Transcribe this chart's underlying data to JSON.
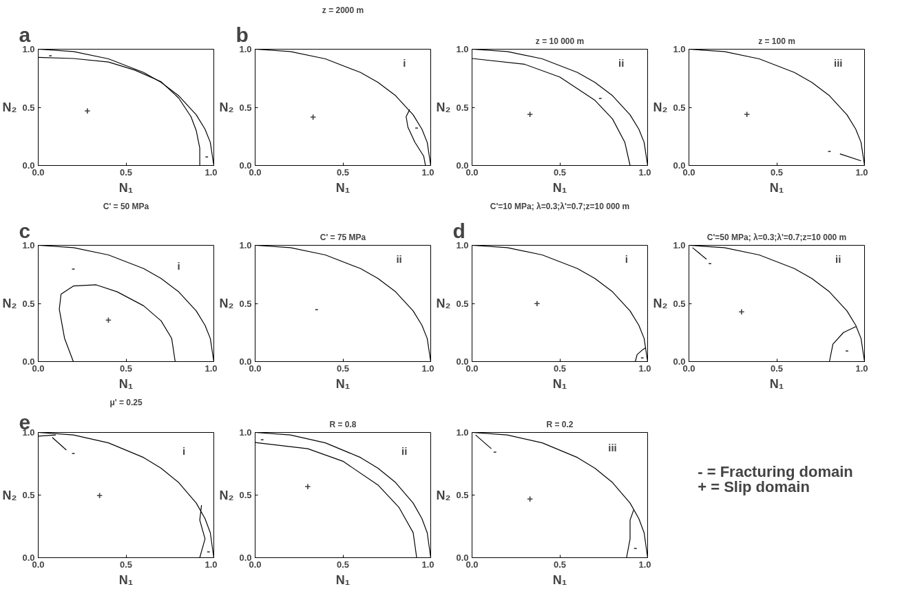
{
  "chart_data": [
    {
      "type": "line",
      "xlabel": "N₁",
      "ylabel": "N₂",
      "xlim": [
        0,
        1
      ],
      "ylim": [
        0,
        1
      ],
      "xticks": [
        {
          "value": 0,
          "label": "0.0"
        },
        {
          "value": 0.5,
          "label": "0.5"
        },
        {
          "value": 1,
          "label": "1.0"
        }
      ],
      "yticks": [
        {
          "value": 0,
          "label": "0.0"
        },
        {
          "value": 0.5,
          "label": "0.5"
        },
        {
          "value": 1,
          "label": "1.0"
        }
      ],
      "series": [
        {
          "color": "#000000",
          "x": [
            0,
            0.2,
            0.4,
            0.6,
            0.7,
            0.8,
            0.9,
            0.95,
            0.98,
            1.0
          ],
          "values": [
            1,
            0.98,
            0.917,
            0.8,
            0.714,
            0.6,
            0.436,
            0.312,
            0.199,
            0
          ]
        },
        {
          "color": "#000000",
          "x": [
            0,
            0.2,
            0.4,
            0.55,
            0.7,
            0.8,
            0.87,
            0.9,
            0.92,
            0.92
          ],
          "values": [
            0.93,
            0.92,
            0.89,
            0.82,
            0.72,
            0.58,
            0.42,
            0.3,
            0.15,
            0
          ]
        }
      ],
      "annotations": [
        "a",
        "-",
        "-",
        "+"
      ]
    },
    {
      "type": "line",
      "title": "z = 2000 m",
      "xlabel": "N₁",
      "ylabel": "N₂",
      "xlim": [
        0,
        1
      ],
      "ylim": [
        0,
        1
      ],
      "xticks": [
        {
          "value": 0,
          "label": "0.0"
        },
        {
          "value": 0.5,
          "label": "0.5"
        },
        {
          "value": 1,
          "label": "1.0"
        }
      ],
      "yticks": [
        {
          "value": 0,
          "label": "0.0"
        },
        {
          "value": 0.5,
          "label": "0.5"
        },
        {
          "value": 1,
          "label": "1.0"
        }
      ],
      "series": [
        {
          "color": "#000000",
          "x": [
            0,
            0.2,
            0.4,
            0.6,
            0.7,
            0.8,
            0.9,
            0.95,
            0.98,
            1.0
          ],
          "values": [
            1,
            0.98,
            0.917,
            0.8,
            0.714,
            0.6,
            0.436,
            0.312,
            0.199,
            0
          ]
        },
        {
          "color": "#000000",
          "x": [
            0.88,
            0.86,
            0.87,
            0.91,
            0.96,
            0.97
          ],
          "values": [
            0.48,
            0.42,
            0.33,
            0.2,
            0.08,
            0
          ]
        }
      ],
      "annotations": [
        "b",
        "i",
        "-",
        "+"
      ]
    },
    {
      "type": "line",
      "title": "z = 10 000 m",
      "xlabel": "N₁",
      "ylabel": "N₂",
      "xlim": [
        0,
        1
      ],
      "ylim": [
        0,
        1
      ],
      "xticks": [
        {
          "value": 0,
          "label": "0.0"
        },
        {
          "value": 0.5,
          "label": "0.5"
        },
        {
          "value": 1,
          "label": "1.0"
        }
      ],
      "yticks": [
        {
          "value": 0,
          "label": "0.0"
        },
        {
          "value": 0.5,
          "label": "0.5"
        },
        {
          "value": 1,
          "label": "1.0"
        }
      ],
      "series": [
        {
          "color": "#000000",
          "x": [
            0,
            0.2,
            0.4,
            0.6,
            0.7,
            0.8,
            0.9,
            0.95,
            0.98,
            1.0
          ],
          "values": [
            1,
            0.98,
            0.917,
            0.8,
            0.714,
            0.6,
            0.436,
            0.312,
            0.199,
            0
          ]
        },
        {
          "color": "#000000",
          "x": [
            0,
            0.3,
            0.5,
            0.7,
            0.8,
            0.87,
            0.9
          ],
          "values": [
            0.92,
            0.87,
            0.76,
            0.56,
            0.4,
            0.2,
            0
          ]
        }
      ],
      "annotations": [
        "ii",
        "-",
        "+"
      ]
    },
    {
      "type": "line",
      "title": "z = 100 m",
      "xlabel": "N₁",
      "ylabel": "N₂",
      "xlim": [
        0,
        1
      ],
      "ylim": [
        0,
        1
      ],
      "xticks": [
        {
          "value": 0,
          "label": "0.0"
        },
        {
          "value": 0.5,
          "label": "0.5"
        },
        {
          "value": 1,
          "label": "1.0"
        }
      ],
      "yticks": [
        {
          "value": 0,
          "label": "0.0"
        },
        {
          "value": 0.5,
          "label": "0.5"
        },
        {
          "value": 1,
          "label": "1.0"
        }
      ],
      "series": [
        {
          "color": "#000000",
          "x": [
            0,
            0.2,
            0.4,
            0.6,
            0.7,
            0.8,
            0.9,
            0.95,
            0.98,
            1.0
          ],
          "values": [
            1,
            0.98,
            0.917,
            0.8,
            0.714,
            0.6,
            0.436,
            0.312,
            0.199,
            0
          ]
        },
        {
          "color": "#000000",
          "x": [
            0.86,
            0.98
          ],
          "values": [
            0.1,
            0.04
          ]
        }
      ],
      "annotations": [
        "iii",
        "-",
        "+"
      ]
    },
    {
      "type": "line",
      "title": "C' = 50 MPa",
      "xlabel": "N₁",
      "ylabel": "N₂",
      "xlim": [
        0,
        1
      ],
      "ylim": [
        0,
        1
      ],
      "xticks": [
        {
          "value": 0,
          "label": "0.0"
        },
        {
          "value": 0.5,
          "label": "0.5"
        },
        {
          "value": 1,
          "label": "1.0"
        }
      ],
      "yticks": [
        {
          "value": 0,
          "label": "0.0"
        },
        {
          "value": 0.5,
          "label": "0.5"
        },
        {
          "value": 1,
          "label": "1.0"
        }
      ],
      "series": [
        {
          "color": "#000000",
          "x": [
            0,
            0.2,
            0.4,
            0.6,
            0.7,
            0.8,
            0.9,
            0.95,
            0.98,
            1.0
          ],
          "values": [
            1,
            0.98,
            0.917,
            0.8,
            0.714,
            0.6,
            0.436,
            0.312,
            0.199,
            0
          ]
        },
        {
          "color": "#000000",
          "x": [
            0.2,
            0.15,
            0.12,
            0.13,
            0.2,
            0.33,
            0.45,
            0.6,
            0.7,
            0.76,
            0.78
          ],
          "values": [
            0,
            0.2,
            0.45,
            0.58,
            0.65,
            0.66,
            0.6,
            0.48,
            0.35,
            0.2,
            0
          ]
        }
      ],
      "annotations": [
        "c",
        "i",
        "-",
        "+"
      ]
    },
    {
      "type": "line",
      "title": "C' = 75 MPa",
      "xlabel": "N₁",
      "ylabel": "N₂",
      "xlim": [
        0,
        1
      ],
      "ylim": [
        0,
        1
      ],
      "xticks": [
        {
          "value": 0,
          "label": "0.0"
        },
        {
          "value": 0.5,
          "label": "0.5"
        },
        {
          "value": 1,
          "label": "1.0"
        }
      ],
      "yticks": [
        {
          "value": 0,
          "label": "0.0"
        },
        {
          "value": 0.5,
          "label": "0.5"
        },
        {
          "value": 1,
          "label": "1.0"
        }
      ],
      "series": [
        {
          "color": "#000000",
          "x": [
            0,
            0.2,
            0.4,
            0.6,
            0.7,
            0.8,
            0.9,
            0.95,
            0.98,
            1.0
          ],
          "values": [
            1,
            0.98,
            0.917,
            0.8,
            0.714,
            0.6,
            0.436,
            0.312,
            0.199,
            0
          ]
        }
      ],
      "annotations": [
        "ii",
        "-"
      ]
    },
    {
      "type": "line",
      "title": "C'=10 MPa; λ=0.3;λ'=0.7;z=10 000 m",
      "xlabel": "N₁",
      "ylabel": "N₂",
      "xlim": [
        0,
        1
      ],
      "ylim": [
        0,
        1
      ],
      "xticks": [
        {
          "value": 0,
          "label": "0.0"
        },
        {
          "value": 0.5,
          "label": "0.5"
        },
        {
          "value": 1,
          "label": "1.0"
        }
      ],
      "yticks": [
        {
          "value": 0,
          "label": "0.0"
        },
        {
          "value": 0.5,
          "label": "0.5"
        },
        {
          "value": 1,
          "label": "1.0"
        }
      ],
      "series": [
        {
          "color": "#000000",
          "x": [
            0,
            0.2,
            0.4,
            0.6,
            0.7,
            0.8,
            0.9,
            0.95,
            0.98,
            1.0
          ],
          "values": [
            1,
            0.98,
            0.917,
            0.8,
            0.714,
            0.6,
            0.436,
            0.312,
            0.199,
            0
          ]
        },
        {
          "color": "#000000",
          "x": [
            0.93,
            0.94,
            0.97,
            0.99
          ],
          "values": [
            0,
            0.06,
            0.1,
            0.12
          ]
        }
      ],
      "annotations": [
        "d",
        "i",
        "-",
        "+"
      ]
    },
    {
      "type": "line",
      "title": "C'=50 MPa; λ=0.3;λ'=0.7;z=10 000 m",
      "xlabel": "N₁",
      "ylabel": "N₂",
      "xlim": [
        0,
        1
      ],
      "ylim": [
        0,
        1
      ],
      "xticks": [
        {
          "value": 0,
          "label": "0.0"
        },
        {
          "value": 0.5,
          "label": "0.5"
        },
        {
          "value": 1,
          "label": "1.0"
        }
      ],
      "yticks": [
        {
          "value": 0,
          "label": "0.0"
        },
        {
          "value": 0.5,
          "label": "0.5"
        },
        {
          "value": 1,
          "label": "1.0"
        }
      ],
      "series": [
        {
          "color": "#000000",
          "x": [
            0,
            0.2,
            0.4,
            0.6,
            0.7,
            0.8,
            0.9,
            0.95,
            0.98,
            1.0
          ],
          "values": [
            1,
            0.98,
            0.917,
            0.8,
            0.714,
            0.6,
            0.436,
            0.312,
            0.199,
            0
          ]
        },
        {
          "color": "#000000",
          "x": [
            0.8,
            0.82,
            0.88,
            0.95
          ],
          "values": [
            0,
            0.15,
            0.25,
            0.3
          ]
        },
        {
          "color": "#000000",
          "x": [
            0.1,
            0.02
          ],
          "values": [
            0.88,
            0.98
          ]
        }
      ],
      "annotations": [
        "ii",
        "-",
        "-",
        "+"
      ]
    },
    {
      "type": "line",
      "title": "μ' = 0.25",
      "xlabel": "N₁",
      "ylabel": "N₂",
      "xlim": [
        0,
        1
      ],
      "ylim": [
        0,
        1
      ],
      "xticks": [
        {
          "value": 0,
          "label": "0.0"
        },
        {
          "value": 0.5,
          "label": "0.5"
        },
        {
          "value": 1,
          "label": "1.0"
        }
      ],
      "yticks": [
        {
          "value": 0,
          "label": "0.0"
        },
        {
          "value": 0.5,
          "label": "0.5"
        },
        {
          "value": 1,
          "label": "1.0"
        }
      ],
      "series": [
        {
          "color": "#000000",
          "x": [
            0,
            0.2,
            0.4,
            0.6,
            0.7,
            0.8,
            0.9,
            0.95,
            0.98,
            1.0
          ],
          "values": [
            1,
            0.98,
            0.917,
            0.8,
            0.714,
            0.6,
            0.436,
            0.312,
            0.199,
            0
          ]
        },
        {
          "color": "#000000",
          "x": [
            0,
            0.1
          ],
          "values": [
            0.97,
            0.98
          ]
        },
        {
          "color": "#000000",
          "x": [
            0.93,
            0.92,
            0.95,
            0.93,
            0.92
          ],
          "values": [
            0.42,
            0.3,
            0.15,
            0.05,
            0
          ]
        },
        {
          "color": "#000000",
          "x": [
            0.16,
            0.08
          ],
          "values": [
            0.86,
            0.96
          ]
        }
      ],
      "annotations": [
        "e",
        "i",
        "-",
        "-",
        "+"
      ]
    },
    {
      "type": "line",
      "title": "R = 0.8",
      "xlabel": "N₁",
      "ylabel": "N₂",
      "xlim": [
        0,
        1
      ],
      "ylim": [
        0,
        1
      ],
      "xticks": [
        {
          "value": 0,
          "label": "0.0"
        },
        {
          "value": 0.5,
          "label": "0.5"
        },
        {
          "value": 1,
          "label": "1.0"
        }
      ],
      "yticks": [
        {
          "value": 0,
          "label": "0.0"
        },
        {
          "value": 0.5,
          "label": "0.5"
        },
        {
          "value": 1,
          "label": "1.0"
        }
      ],
      "series": [
        {
          "color": "#000000",
          "x": [
            0,
            0.2,
            0.4,
            0.6,
            0.7,
            0.8,
            0.9,
            0.95,
            0.98,
            1.0
          ],
          "values": [
            1,
            0.98,
            0.917,
            0.8,
            0.714,
            0.6,
            0.436,
            0.312,
            0.199,
            0
          ]
        },
        {
          "color": "#000000",
          "x": [
            0,
            0.3,
            0.5,
            0.7,
            0.82,
            0.9,
            0.92
          ],
          "values": [
            0.92,
            0.87,
            0.77,
            0.58,
            0.4,
            0.2,
            0
          ]
        }
      ],
      "annotations": [
        "ii",
        "-",
        "+"
      ]
    },
    {
      "type": "line",
      "title": "R = 0.2",
      "xlabel": "N₁",
      "ylabel": "N₂",
      "xlim": [
        0,
        1
      ],
      "ylim": [
        0,
        1
      ],
      "xticks": [
        {
          "value": 0,
          "label": "0.0"
        },
        {
          "value": 0.5,
          "label": "0.5"
        },
        {
          "value": 1,
          "label": "1.0"
        }
      ],
      "yticks": [
        {
          "value": 0,
          "label": "0.0"
        },
        {
          "value": 0.5,
          "label": "0.5"
        },
        {
          "value": 1,
          "label": "1.0"
        }
      ],
      "series": [
        {
          "color": "#000000",
          "x": [
            0,
            0.2,
            0.4,
            0.6,
            0.7,
            0.8,
            0.9,
            0.95,
            0.98,
            1.0
          ],
          "values": [
            1,
            0.98,
            0.917,
            0.8,
            0.714,
            0.6,
            0.436,
            0.312,
            0.199,
            0
          ]
        },
        {
          "color": "#000000",
          "x": [
            0.92,
            0.9,
            0.9,
            0.88
          ],
          "values": [
            0.38,
            0.3,
            0.15,
            0
          ]
        },
        {
          "color": "#000000",
          "x": [
            0.11,
            0.02
          ],
          "values": [
            0.87,
            0.98
          ]
        }
      ],
      "annotations": [
        "iii",
        "-",
        "-",
        "+"
      ]
    },
    {
      "type": "other",
      "annotations": [
        "- = Fracturing domain",
        "+ = Slip domain"
      ]
    }
  ]
}
